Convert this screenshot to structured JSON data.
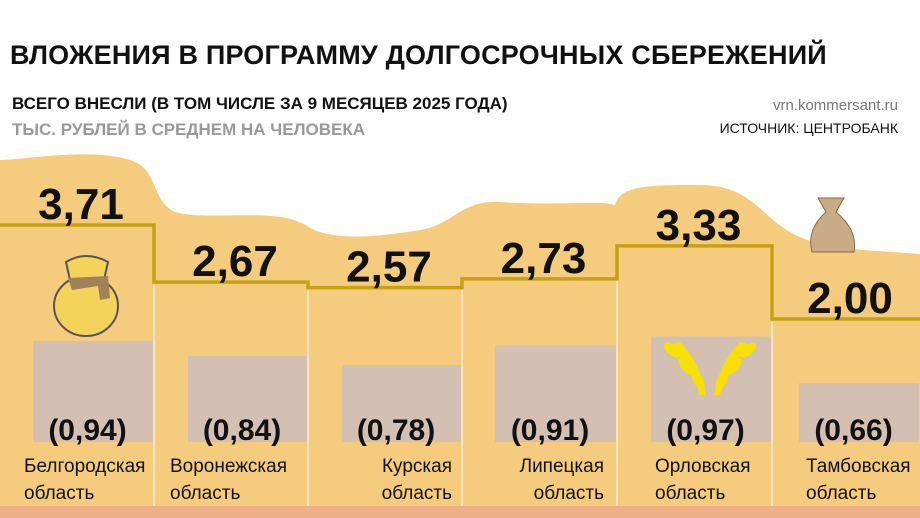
{
  "header": {
    "title": "ВЛОЖЕНИЯ В ПРОГРАММУ ДОЛГОСРОЧНЫХ СБЕРЕЖЕНИЙ",
    "subtitle1": "ВСЕГО ВНЕСЛИ (В ТОМ ЧИСЛЕ ЗА 9 МЕСЯЦЕВ 2025 ГОДА)",
    "subtitle2": "ТЫС. РУБЛЕЙ В СРЕДНЕМ НА ЧЕЛОВЕКА",
    "site": "vrn.kommersant.ru",
    "source": "ИСТОЧНИК: ЦЕНТРОБАНК"
  },
  "colors": {
    "background": "#f5cb7d",
    "step_line": "#c6a212",
    "bar_2025": "#d3c0b3",
    "bottom_stripe": "#eeae88"
  },
  "chart_data": {
    "type": "bar",
    "categories": [
      [
        "Белгородская",
        "область"
      ],
      [
        "Воронежская",
        "область"
      ],
      [
        "Курская",
        "область"
      ],
      [
        "Липецкая",
        "область"
      ],
      [
        "Орловская",
        "область"
      ],
      [
        "Тамбовская",
        "область"
      ]
    ],
    "series": [
      {
        "values": [
          3.71,
          2.67,
          2.57,
          2.73,
          3.33,
          2.0
        ],
        "labels": [
          "3,71",
          "2,67",
          "2,57",
          "2,73",
          "3,33",
          "2,00"
        ]
      },
      {
        "values": [
          0.94,
          0.84,
          0.78,
          0.91,
          0.97,
          0.66
        ],
        "labels": [
          "(0,94)",
          "(0,84)",
          "(0,78)",
          "(0,91)",
          "(0,97)",
          "(0,66)"
        ]
      }
    ],
    "icons": [
      "money-bag-gold-icon",
      "wheat-ears-icon",
      "sack-icon"
    ]
  }
}
